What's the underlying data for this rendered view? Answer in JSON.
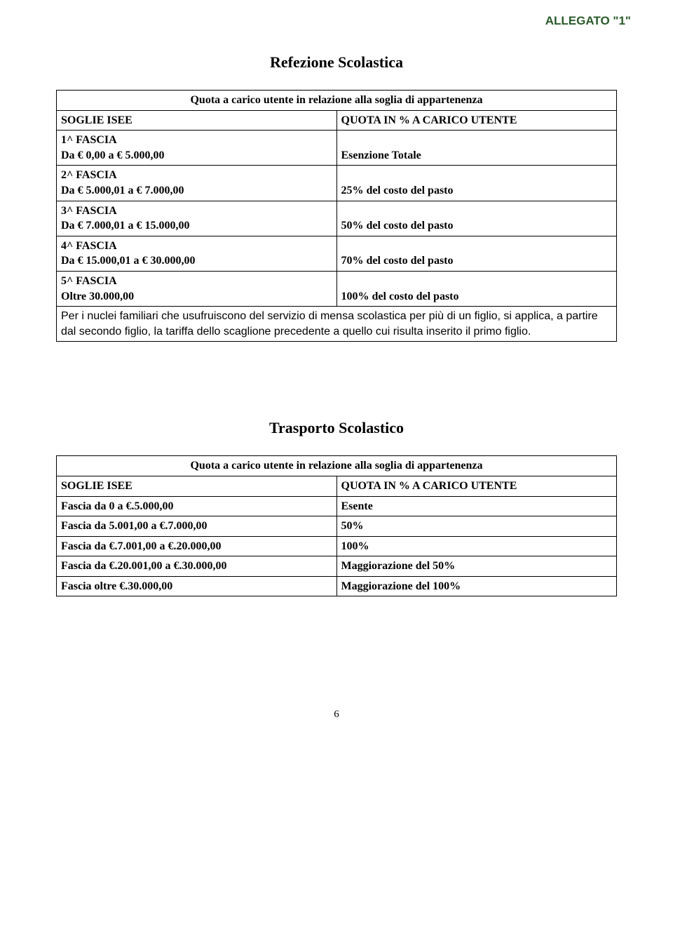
{
  "allegato": "ALLEGATO \"1\"",
  "refezione": {
    "title": "Refezione Scolastica",
    "table_caption": "Quota a carico utente in relazione alla soglia di appartenenza",
    "col_left": "SOGLIE ISEE",
    "col_right": "QUOTA IN % A CARICO UTENTE",
    "rows": [
      {
        "fascia": "1^ FASCIA",
        "range": "Da € 0,00 a € 5.000,00",
        "quota": "Esenzione Totale"
      },
      {
        "fascia": "2^ FASCIA",
        "range": "Da € 5.000,01 a € 7.000,00",
        "quota": "25% del costo del pasto"
      },
      {
        "fascia": "3^ FASCIA",
        "range": "Da € 7.000,01 a € 15.000,00",
        "quota": "50% del costo del pasto"
      },
      {
        "fascia": "4^ FASCIA",
        "range": "Da € 15.000,01 a € 30.000,00",
        "quota": "70% del costo del pasto"
      },
      {
        "fascia": "5^ FASCIA",
        "range": "Oltre 30.000,00",
        "quota": "100% del costo del pasto"
      }
    ],
    "note": "Per i nuclei familiari che usufruiscono del servizio di mensa scolastica per più di un figlio, si applica, a partire dal secondo figlio, la tariffa dello scaglione precedente a quello cui risulta inserito il primo figlio."
  },
  "trasporto": {
    "title": "Trasporto Scolastico",
    "table_caption": "Quota a carico utente in relazione alla soglia di appartenenza",
    "col_left": "SOGLIE ISEE",
    "col_right": "QUOTA IN % A CARICO UTENTE",
    "rows": [
      {
        "range": "Fascia da 0 a €.5.000,00",
        "quota": "Esente"
      },
      {
        "range": "Fascia da 5.001,00 a €.7.000,00",
        "quota": "50%"
      },
      {
        "range": "Fascia da €.7.001,00 a €.20.000,00",
        "quota": "100%"
      },
      {
        "range": "Fascia da €.20.001,00 a €.30.000,00",
        "quota": "Maggiorazione del 50%"
      },
      {
        "range": "Fascia oltre €.30.000,00",
        "quota": "Maggiorazione del 100%"
      }
    ]
  },
  "page_number": "6",
  "colors": {
    "text": "#000000",
    "allegato_text": "#2a5a2a",
    "border": "#000000",
    "background": "#ffffff"
  },
  "fonts": {
    "body": "Times New Roman",
    "allegato": "Arial",
    "note": "Arial"
  }
}
